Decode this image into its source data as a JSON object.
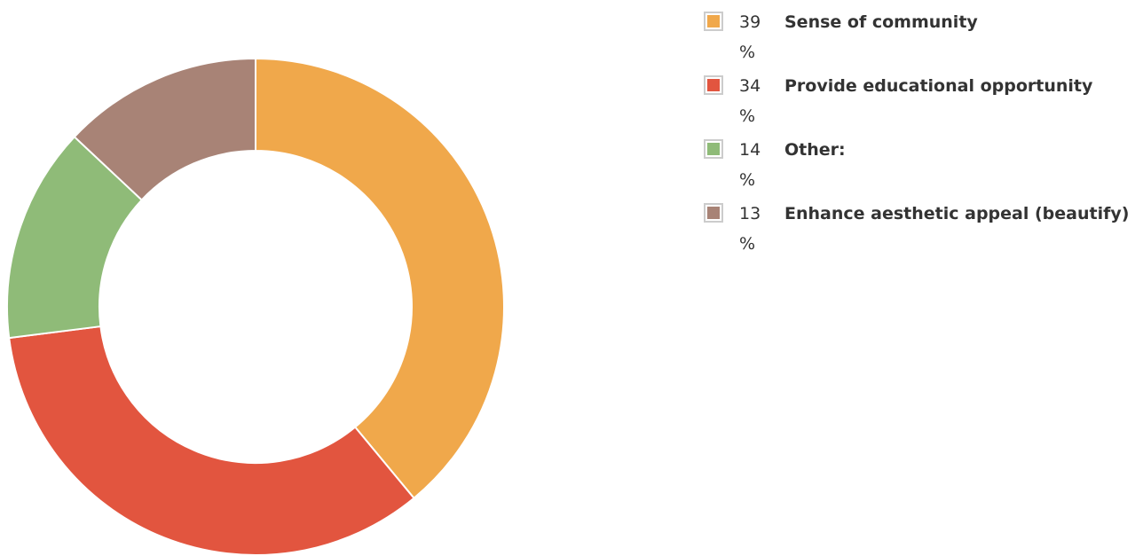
{
  "chart_data": {
    "type": "donut",
    "categories": [
      "Sense of community",
      "Provide educational opportunity",
      "Other:",
      "Enhance aesthetic appeal (beautify)"
    ],
    "values": [
      39,
      34,
      14,
      13
    ],
    "value_labels": [
      "39 %",
      "34 %",
      "14 %",
      "13 %"
    ],
    "colors": [
      "#f0a84b",
      "#e2553f",
      "#8fbb78",
      "#a88376"
    ],
    "legend": "top-right"
  }
}
